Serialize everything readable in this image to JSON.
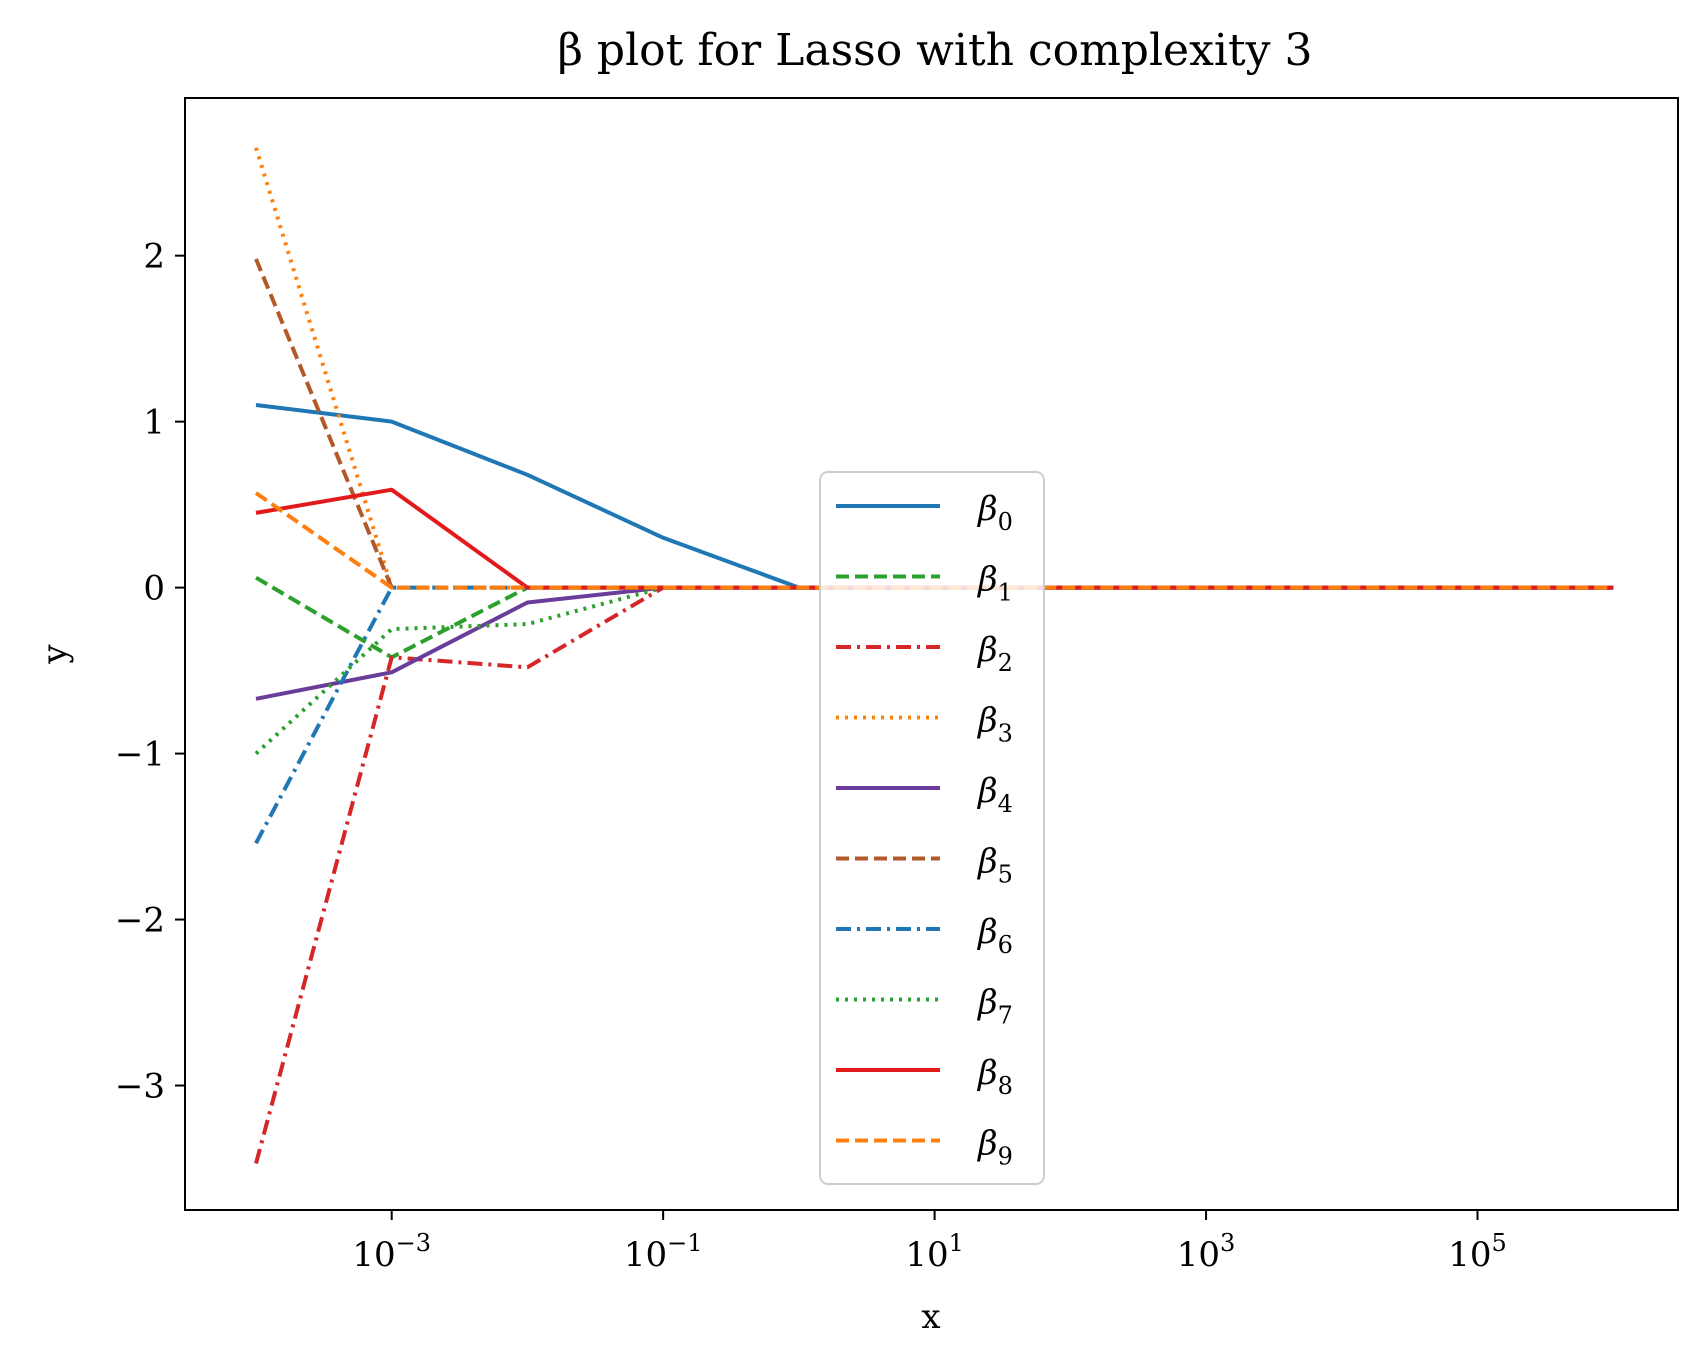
{
  "chart_data": {
    "type": "line",
    "title": "β plot for Lasso with complexity 3",
    "xlabel": "x",
    "ylabel": "y",
    "xscale": "log",
    "x": [
      0.0001,
      0.001,
      0.01,
      0.1,
      1,
      10,
      100,
      1000,
      10000,
      100000,
      1000000
    ],
    "xlim": [
      3e-05,
      3000000
    ],
    "ylim": [
      -3.75,
      2.95
    ],
    "xticks": [
      {
        "value": 0.001,
        "base": "10",
        "exp": "−3"
      },
      {
        "value": 0.1,
        "base": "10",
        "exp": "−1"
      },
      {
        "value": 10,
        "base": "10",
        "exp": "1"
      },
      {
        "value": 1000,
        "base": "10",
        "exp": "3"
      },
      {
        "value": 100000,
        "base": "10",
        "exp": "5"
      }
    ],
    "yticks": [
      {
        "value": 2,
        "label": "2"
      },
      {
        "value": 1,
        "label": "1"
      },
      {
        "value": 0,
        "label": "0"
      },
      {
        "value": -1,
        "label": "−1"
      },
      {
        "value": -2,
        "label": "−2"
      },
      {
        "value": -3,
        "label": "−3"
      }
    ],
    "grid": false,
    "legend_position": "lower-center",
    "series": [
      {
        "name": "β",
        "sub": "0",
        "color": "#1f77b4",
        "dash": "solid",
        "values": [
          1.1,
          1.0,
          0.68,
          0.3,
          0.0,
          0,
          0,
          0,
          0,
          0,
          0
        ]
      },
      {
        "name": "β",
        "sub": "1",
        "color": "#2ca02c",
        "dash": "dashed",
        "values": [
          0.06,
          -0.42,
          0.0,
          0,
          0,
          0,
          0,
          0,
          0,
          0,
          0
        ]
      },
      {
        "name": "β",
        "sub": "2",
        "color": "#d62728",
        "dash": "dashdot",
        "values": [
          -3.47,
          -0.42,
          -0.48,
          0.0,
          0,
          0,
          0,
          0,
          0,
          0,
          0
        ]
      },
      {
        "name": "β",
        "sub": "3",
        "color": "#ff7f0e",
        "dash": "dotted",
        "values": [
          2.65,
          0.0,
          0,
          0,
          0,
          0,
          0,
          0,
          0,
          0,
          0
        ]
      },
      {
        "name": "β",
        "sub": "4",
        "color": "#6a3d9a",
        "dash": "solid",
        "values": [
          -0.67,
          -0.51,
          -0.09,
          0.0,
          0,
          0,
          0,
          0,
          0,
          0,
          0
        ]
      },
      {
        "name": "β",
        "sub": "5",
        "color": "#b15928",
        "dash": "dashed",
        "values": [
          1.98,
          0.0,
          0,
          0,
          0,
          0,
          0,
          0,
          0,
          0,
          0
        ]
      },
      {
        "name": "β",
        "sub": "6",
        "color": "#1f77b4",
        "dash": "dashdot",
        "values": [
          -1.54,
          0.0,
          0,
          0,
          0,
          0,
          0,
          0,
          0,
          0,
          0
        ]
      },
      {
        "name": "β",
        "sub": "7",
        "color": "#2ca02c",
        "dash": "dotted",
        "values": [
          -1.0,
          -0.25,
          -0.22,
          0.0,
          0,
          0,
          0,
          0,
          0,
          0,
          0
        ]
      },
      {
        "name": "β",
        "sub": "8",
        "color": "#e31a1c",
        "dash": "solid",
        "values": [
          0.45,
          0.59,
          0.0,
          0,
          0,
          0,
          0,
          0,
          0,
          0,
          0
        ]
      },
      {
        "name": "β",
        "sub": "9",
        "color": "#ff7f0e",
        "dash": "dashed",
        "values": [
          0.57,
          0.0,
          0,
          0,
          0,
          0,
          0,
          0,
          0,
          0,
          0
        ]
      }
    ]
  }
}
